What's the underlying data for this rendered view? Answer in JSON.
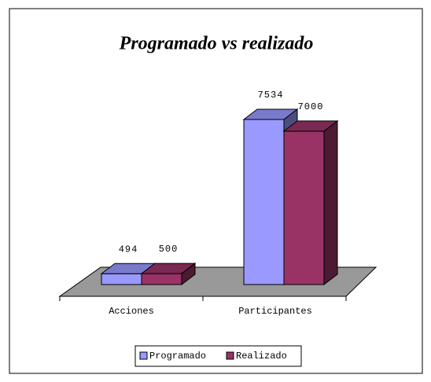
{
  "chart_data": {
    "type": "bar3d",
    "title": "Programado vs realizado",
    "categories": [
      "Acciones",
      "Participantes"
    ],
    "series": [
      {
        "name": "Programado",
        "color": "#9999ff",
        "values": [
          494,
          7534
        ]
      },
      {
        "name": "Realizado",
        "color": "#993366",
        "values": [
          500,
          7000
        ]
      }
    ],
    "legend": "bottom"
  }
}
